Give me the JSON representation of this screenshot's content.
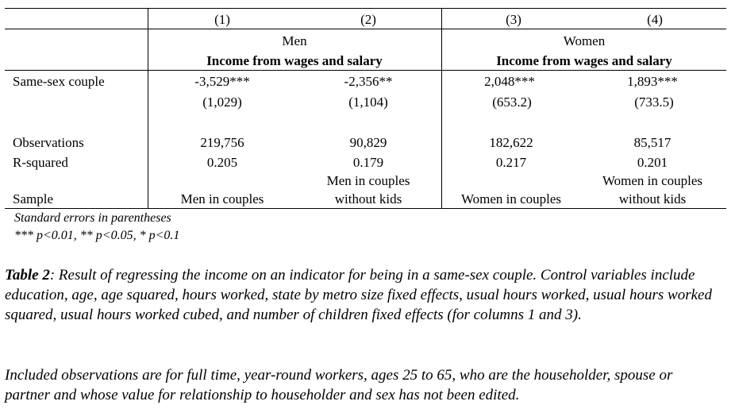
{
  "table": {
    "col_numbers": [
      "(1)",
      "(2)",
      "(3)",
      "(4)"
    ],
    "groups": [
      {
        "name": "Men",
        "subtitle": "Income from wages and salary"
      },
      {
        "name": "Women",
        "subtitle": "Income from wages and salary"
      }
    ],
    "rows": {
      "same_sex": {
        "label": "Same-sex couple",
        "coefs": [
          "-3,529***",
          "-2,356**",
          "2,048***",
          "1,893***"
        ],
        "ses": [
          "(1,029)",
          "(1,104)",
          "(653.2)",
          "(733.5)"
        ]
      },
      "observations": {
        "label": "Observations",
        "values": [
          "219,756",
          "90,829",
          "182,622",
          "85,517"
        ]
      },
      "r_squared": {
        "label": "R-squared",
        "values": [
          "0.205",
          "0.179",
          "0.217",
          "0.201"
        ]
      },
      "sample": {
        "label": "Sample",
        "c1": "Men in couples",
        "c2_line1": "Men in couples",
        "c2_line2": "without kids",
        "c3": "Women in couples",
        "c4_line1": "Women in couples",
        "c4_line2": "without kids"
      }
    },
    "notes": [
      "Standard errors in parentheses",
      "*** p<0.01, ** p<0.05, * p<0.1"
    ]
  },
  "caption": {
    "label": "Table 2",
    "text": ": Result of regressing the income on an indicator for being in a same-sex couple. Control variables include education, age, age squared, hours worked, state by metro size fixed effects, usual hours worked, usual hours worked squared, usual hours worked cubed, and number of children fixed effects (for columns 1 and 3).",
    "para2": "Included observations are for full time, year-round workers, ages 25 to 65, who are the householder, spouse or partner and whose value for relationship to householder and sex has not been edited."
  }
}
